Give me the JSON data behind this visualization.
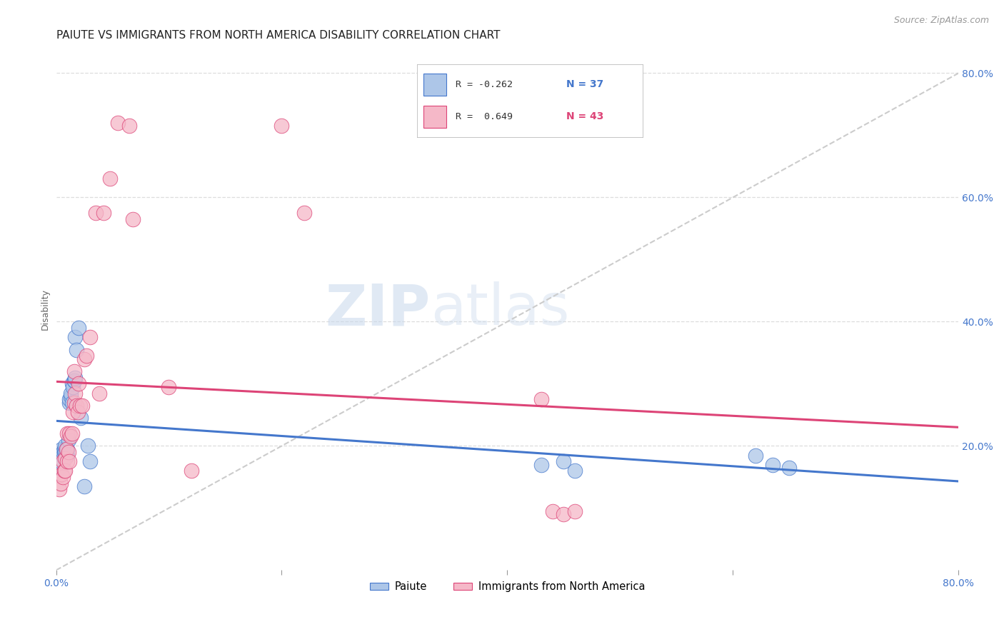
{
  "title": "PAIUTE VS IMMIGRANTS FROM NORTH AMERICA DISABILITY CORRELATION CHART",
  "source": "Source: ZipAtlas.com",
  "ylabel": "Disability",
  "legend_blue_r": "R = -0.262",
  "legend_blue_n": "N = 37",
  "legend_pink_r": "R =  0.649",
  "legend_pink_n": "N = 43",
  "legend_label_blue": "Paiute",
  "legend_label_pink": "Immigrants from North America",
  "blue_color": "#adc6e8",
  "pink_color": "#f5b8c8",
  "blue_line_color": "#4477cc",
  "pink_line_color": "#dd4477",
  "diagonal_color": "#cccccc",
  "background_color": "#ffffff",
  "grid_color": "#dddddd",
  "watermark_zip": "ZIP",
  "watermark_atlas": "atlas",
  "blue_x": [
    0.003,
    0.004,
    0.005,
    0.006,
    0.006,
    0.007,
    0.007,
    0.008,
    0.008,
    0.009,
    0.009,
    0.01,
    0.01,
    0.011,
    0.012,
    0.012,
    0.013,
    0.013,
    0.014,
    0.014,
    0.015,
    0.016,
    0.016,
    0.017,
    0.017,
    0.018,
    0.02,
    0.022,
    0.025,
    0.028,
    0.03,
    0.43,
    0.45,
    0.46,
    0.62,
    0.635,
    0.65
  ],
  "blue_y": [
    0.165,
    0.175,
    0.195,
    0.185,
    0.19,
    0.19,
    0.195,
    0.19,
    0.2,
    0.185,
    0.195,
    0.185,
    0.195,
    0.21,
    0.27,
    0.275,
    0.28,
    0.285,
    0.27,
    0.3,
    0.295,
    0.305,
    0.305,
    0.31,
    0.375,
    0.355,
    0.39,
    0.245,
    0.135,
    0.2,
    0.175,
    0.17,
    0.175,
    0.16,
    0.185,
    0.17,
    0.165
  ],
  "pink_x": [
    0.003,
    0.004,
    0.005,
    0.006,
    0.006,
    0.007,
    0.008,
    0.008,
    0.009,
    0.01,
    0.01,
    0.011,
    0.012,
    0.012,
    0.013,
    0.014,
    0.015,
    0.016,
    0.016,
    0.017,
    0.018,
    0.019,
    0.02,
    0.021,
    0.023,
    0.025,
    0.027,
    0.03,
    0.035,
    0.038,
    0.042,
    0.048,
    0.055,
    0.065,
    0.068,
    0.1,
    0.12,
    0.2,
    0.22,
    0.43,
    0.44,
    0.45,
    0.46
  ],
  "pink_y": [
    0.13,
    0.14,
    0.155,
    0.15,
    0.175,
    0.16,
    0.18,
    0.16,
    0.195,
    0.175,
    0.22,
    0.19,
    0.175,
    0.22,
    0.215,
    0.22,
    0.255,
    0.27,
    0.32,
    0.285,
    0.265,
    0.255,
    0.3,
    0.265,
    0.265,
    0.34,
    0.345,
    0.375,
    0.575,
    0.285,
    0.575,
    0.63,
    0.72,
    0.715,
    0.565,
    0.295,
    0.16,
    0.715,
    0.575,
    0.275,
    0.095,
    0.09,
    0.095
  ],
  "xlim": [
    0.0,
    0.8
  ],
  "ylim": [
    0.0,
    0.84
  ],
  "title_fontsize": 11,
  "axis_label_fontsize": 9,
  "tick_fontsize": 10,
  "source_fontsize": 9,
  "legend_fontsize": 9.5
}
